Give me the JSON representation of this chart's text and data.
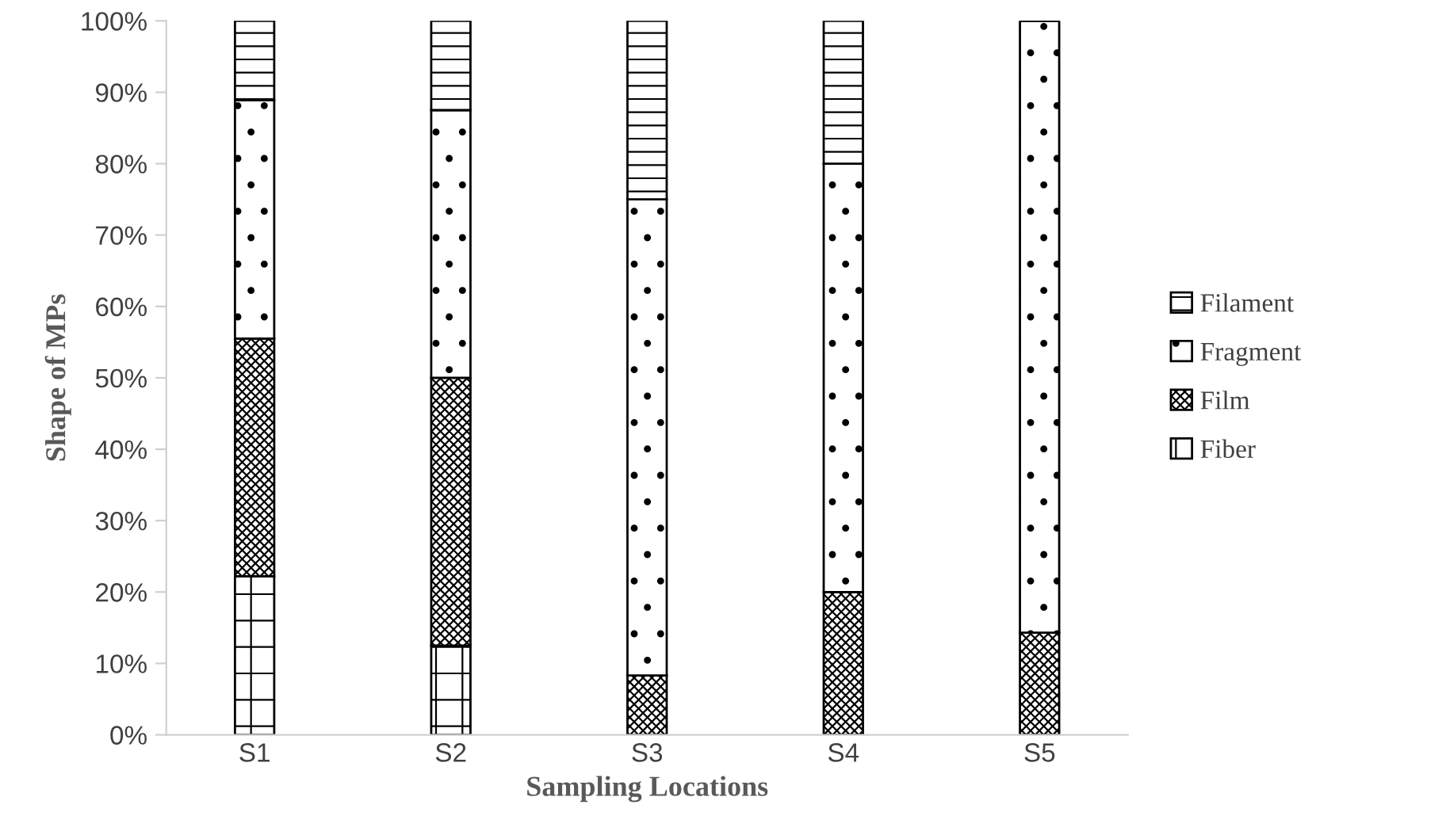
{
  "chart_data": {
    "type": "bar",
    "stacked": true,
    "xlabel": "Sampling Locations",
    "ylabel": "Shape of MPs",
    "categories": [
      "S1",
      "S2",
      "S3",
      "S4",
      "S5"
    ],
    "series": [
      {
        "name": "Fiber",
        "color": "#000000",
        "values": [
          22.2,
          12.5,
          0,
          0,
          0
        ]
      },
      {
        "name": "Film",
        "color": "#000000",
        "values": [
          33.3,
          37.5,
          8.3,
          20,
          14.3
        ]
      },
      {
        "name": "Fragment",
        "color": "#000000",
        "values": [
          33.4,
          37.5,
          66.7,
          60,
          85.7
        ]
      },
      {
        "name": "Filament",
        "color": "#000000",
        "values": [
          11.1,
          12.5,
          25,
          20,
          0
        ]
      }
    ],
    "ylim": [
      0,
      100
    ],
    "yticks": [
      {
        "value": 0,
        "label": "0%"
      },
      {
        "value": 10,
        "label": "10%"
      },
      {
        "value": 20,
        "label": "20%"
      },
      {
        "value": 30,
        "label": "30%"
      },
      {
        "value": 40,
        "label": "40%"
      },
      {
        "value": 50,
        "label": "50%"
      },
      {
        "value": 60,
        "label": "60%"
      },
      {
        "value": 70,
        "label": "70%"
      },
      {
        "value": 80,
        "label": "80%"
      },
      {
        "value": 90,
        "label": "90%"
      },
      {
        "value": 100,
        "label": "100%"
      }
    ],
    "grid": false,
    "legend": "right"
  }
}
